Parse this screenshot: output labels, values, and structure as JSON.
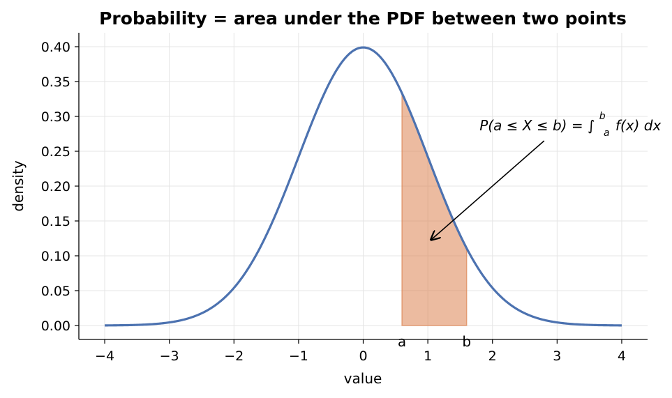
{
  "chart_data": {
    "type": "area",
    "title": "Probability = area under the PDF between two points",
    "xlabel": "value",
    "ylabel": "density",
    "xlim": [
      -4.4,
      4.4
    ],
    "ylim": [
      -0.02,
      0.42
    ],
    "x_ticks": [
      -4,
      -3,
      -2,
      -1,
      0,
      1,
      2,
      3,
      4
    ],
    "x_tick_labels": [
      "−4",
      "−3",
      "−2",
      "−1",
      "0",
      "1",
      "2",
      "3",
      "4"
    ],
    "y_ticks": [
      0.0,
      0.05,
      0.1,
      0.15,
      0.2,
      0.25,
      0.3,
      0.35,
      0.4
    ],
    "y_tick_labels": [
      "0.00",
      "0.05",
      "0.10",
      "0.15",
      "0.20",
      "0.25",
      "0.30",
      "0.35",
      "0.40"
    ],
    "grid": true,
    "series": [
      {
        "distribution": "standard normal",
        "mean": 0,
        "sd": 1,
        "x_range": [
          -4,
          4
        ],
        "color": "#4c72b0"
      }
    ],
    "shaded_region": {
      "a": 0.6,
      "b": 1.6,
      "a_label": "a",
      "b_label": "b",
      "color": "#dd8452"
    },
    "annotation": {
      "prefix": "P(a ≤ X ≤ b) = ∫",
      "upper": "b",
      "lower": "a",
      "suffix": "f(x) dx",
      "text_at": [
        1.8,
        0.28
      ],
      "arrow_from": [
        2.8,
        0.265
      ],
      "arrow_to": [
        1.05,
        0.123
      ]
    }
  }
}
